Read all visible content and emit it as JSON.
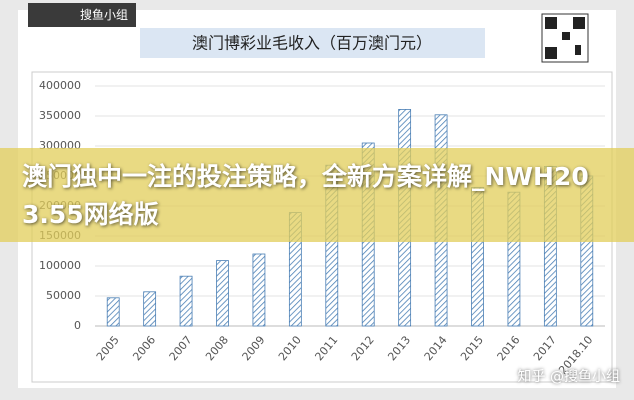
{
  "logo": "搜鱼小组",
  "banner": "澳门独中一注的投注策略，全新方案详解_NWH203.55网络版",
  "watermark": "知乎 @搜鱼小组",
  "chart_data": {
    "type": "bar",
    "title": "澳门博彩业毛收入（百万澳门元）",
    "categories": [
      "2005",
      "2006",
      "2007",
      "2008",
      "2009",
      "2010",
      "2011",
      "2012",
      "2013",
      "2014",
      "2015",
      "2016",
      "2017",
      "2018.10"
    ],
    "values": [
      47000,
      57000,
      83000,
      109000,
      120000,
      189000,
      268000,
      305000,
      361000,
      352000,
      231000,
      223000,
      266000,
      250000
    ],
    "color": "#4a7fb5",
    "ylim": [
      0,
      400000
    ],
    "yticks": [
      0,
      50000,
      100000,
      150000,
      200000,
      250000,
      300000,
      350000,
      400000
    ],
    "grid": true
  }
}
